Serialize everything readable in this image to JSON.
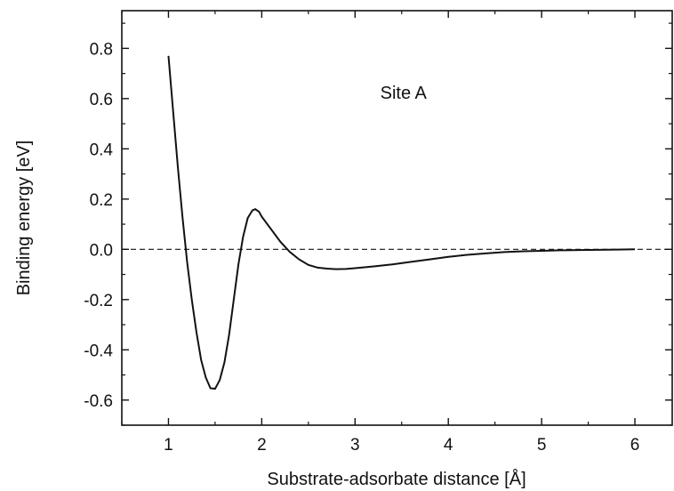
{
  "chart_data": {
    "type": "line",
    "title": "",
    "xlabel": "Substrate-adsorbate distance [Å]",
    "ylabel": "Binding energy [eV]",
    "xlim": [
      0.5,
      6.4
    ],
    "ylim": [
      -0.7,
      0.95
    ],
    "grid": false,
    "legend": "none",
    "annotation": "Site A",
    "reference_line": {
      "y": 0.0,
      "style": "dashed"
    },
    "x_ticks": [
      "1",
      "2",
      "3",
      "4",
      "5",
      "6"
    ],
    "y_ticks": [
      "-0.6",
      "-0.4",
      "-0.2",
      "0.0",
      "0.2",
      "0.4",
      "0.6",
      "0.8"
    ],
    "series": [
      {
        "color": "#111111",
        "points": [
          [
            1.0,
            0.77
          ],
          [
            1.05,
            0.55
          ],
          [
            1.1,
            0.33
          ],
          [
            1.15,
            0.13
          ],
          [
            1.2,
            -0.05
          ],
          [
            1.25,
            -0.2
          ],
          [
            1.3,
            -0.33
          ],
          [
            1.35,
            -0.44
          ],
          [
            1.4,
            -0.51
          ],
          [
            1.45,
            -0.553
          ],
          [
            1.5,
            -0.555
          ],
          [
            1.55,
            -0.52
          ],
          [
            1.6,
            -0.45
          ],
          [
            1.65,
            -0.34
          ],
          [
            1.7,
            -0.2
          ],
          [
            1.75,
            -0.06
          ],
          [
            1.8,
            0.05
          ],
          [
            1.85,
            0.125
          ],
          [
            1.9,
            0.155
          ],
          [
            1.93,
            0.16
          ],
          [
            1.97,
            0.15
          ],
          [
            2.0,
            0.13
          ],
          [
            2.1,
            0.08
          ],
          [
            2.2,
            0.03
          ],
          [
            2.3,
            -0.01
          ],
          [
            2.4,
            -0.04
          ],
          [
            2.5,
            -0.062
          ],
          [
            2.6,
            -0.073
          ],
          [
            2.7,
            -0.077
          ],
          [
            2.8,
            -0.079
          ],
          [
            2.9,
            -0.078
          ],
          [
            3.0,
            -0.075
          ],
          [
            3.2,
            -0.068
          ],
          [
            3.4,
            -0.06
          ],
          [
            3.6,
            -0.05
          ],
          [
            3.8,
            -0.04
          ],
          [
            4.0,
            -0.03
          ],
          [
            4.2,
            -0.022
          ],
          [
            4.4,
            -0.016
          ],
          [
            4.6,
            -0.011
          ],
          [
            4.8,
            -0.008
          ],
          [
            5.0,
            -0.006
          ],
          [
            5.2,
            -0.004
          ],
          [
            5.4,
            -0.003
          ],
          [
            5.6,
            -0.002
          ],
          [
            5.8,
            -0.001
          ],
          [
            6.0,
            0.0
          ]
        ]
      }
    ]
  }
}
